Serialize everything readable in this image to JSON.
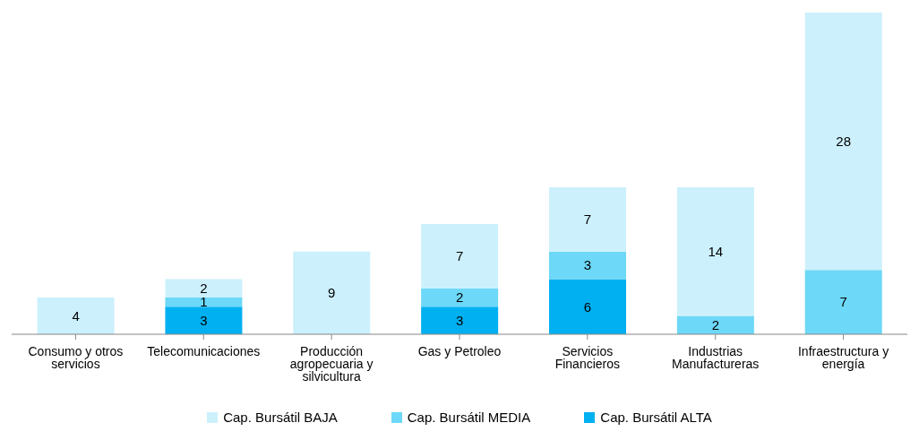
{
  "chart_data": {
    "type": "bar",
    "stacked": true,
    "data_labels": true,
    "legend": "bottom",
    "grid": false,
    "categories": [
      "Consumo y otros servicios",
      "Telecomunicaciones",
      "Producción agropecuaria y silvicultura",
      "Gas y Petroleo",
      "Servicios Financieros",
      "Industrias Manufactureras",
      "Infraestructura y energía"
    ],
    "series": [
      {
        "name": "Cap. Bursátil ALTA",
        "color": "#00b0f0",
        "values": [
          null,
          3,
          null,
          3,
          6,
          null,
          null
        ]
      },
      {
        "name": "Cap. Bursátil MEDIA",
        "color": "#6dd8f7",
        "values": [
          null,
          1,
          null,
          2,
          3,
          2,
          7
        ]
      },
      {
        "name": "Cap. Bursátil BAJA",
        "color": "#ccf0fc",
        "values": [
          4,
          2,
          9,
          7,
          7,
          14,
          28
        ]
      }
    ]
  }
}
